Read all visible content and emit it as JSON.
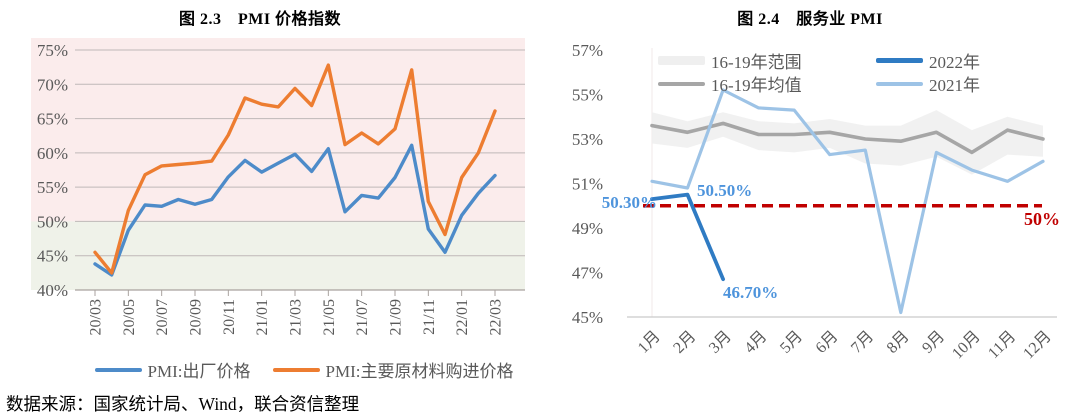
{
  "page": {
    "source_note": "数据来源：国家统计局、Wind，联合资信整理"
  },
  "colors": {
    "axis_text": "#595959",
    "gridline": "#BFB8B8",
    "axis_line": "#A9A29F",
    "baseline": "#C9C9C9",
    "annotation_blue": "#4E94DC",
    "refline_red": "#C00000"
  },
  "chart_data": [
    {
      "type": "line",
      "title": "图 2.3　PMI 价格指数",
      "categories": [
        "20/03",
        "20/04",
        "20/05",
        "20/06",
        "20/07",
        "20/08",
        "20/09",
        "20/10",
        "20/11",
        "20/12",
        "21/01",
        "21/02",
        "21/03",
        "21/04",
        "21/05",
        "21/06",
        "21/07",
        "21/08",
        "21/09",
        "21/10",
        "21/11",
        "21/12",
        "22/01",
        "22/02",
        "22/03"
      ],
      "x_tick_labels": [
        "20/03",
        "20/05",
        "20/07",
        "20/09",
        "20/11",
        "21/01",
        "21/03",
        "21/05",
        "21/07",
        "21/09",
        "21/11",
        "22/01",
        "22/03"
      ],
      "y_ticks": [
        {
          "label": "40%",
          "value": 40
        },
        {
          "label": "45%",
          "value": 45
        },
        {
          "label": "50%",
          "value": 50
        },
        {
          "label": "55%",
          "value": 55
        },
        {
          "label": "60%",
          "value": 60
        },
        {
          "label": "65%",
          "value": 65
        },
        {
          "label": "70%",
          "value": 70
        },
        {
          "label": "75%",
          "value": 75
        }
      ],
      "ylim": [
        40,
        75
      ],
      "grid": true,
      "legend_position": "bottom",
      "plot_bands": [
        {
          "from": 50,
          "to": 75,
          "color": "#FBECEC"
        },
        {
          "from": 40,
          "to": 50,
          "color": "#EFF2E9"
        }
      ],
      "series": [
        {
          "name": "PMI:出厂价格",
          "color": "#4D8BC9",
          "values": [
            43.8,
            42.2,
            48.7,
            52.4,
            52.2,
            53.2,
            52.5,
            53.2,
            56.5,
            58.9,
            57.2,
            58.5,
            59.8,
            57.3,
            60.6,
            51.4,
            53.8,
            53.4,
            56.4,
            61.1,
            48.9,
            45.5,
            50.9,
            54.1,
            56.7
          ]
        },
        {
          "name": "PMI:主要原材料购进价格",
          "color": "#ED7D31",
          "values": [
            45.5,
            42.5,
            51.6,
            56.8,
            58.1,
            58.3,
            58.5,
            58.8,
            62.6,
            68.0,
            67.1,
            66.7,
            69.4,
            66.9,
            72.8,
            61.2,
            62.9,
            61.3,
            63.5,
            72.1,
            52.9,
            48.1,
            56.4,
            60.0,
            66.1
          ]
        }
      ]
    },
    {
      "type": "line",
      "title": "图 2.4　服务业 PMI",
      "categories": [
        "1月",
        "2月",
        "3月",
        "4月",
        "5月",
        "6月",
        "7月",
        "8月",
        "9月",
        "10月",
        "11月",
        "12月"
      ],
      "y_ticks": [
        {
          "label": "45%",
          "value": 45
        },
        {
          "label": "47%",
          "value": 47
        },
        {
          "label": "49%",
          "value": 49
        },
        {
          "label": "51%",
          "value": 51
        },
        {
          "label": "53%",
          "value": 53
        },
        {
          "label": "55%",
          "value": 55
        },
        {
          "label": "57%",
          "value": 57
        }
      ],
      "ylim": [
        45,
        57
      ],
      "grid": false,
      "legend_position": "top",
      "band": {
        "name": "16-19年范围",
        "color": "#EFEFEF",
        "upper": [
          54.2,
          53.8,
          54.2,
          53.8,
          53.7,
          53.9,
          53.6,
          53.6,
          54.3,
          53.4,
          54.0,
          53.6
        ],
        "lower": [
          52.8,
          52.6,
          53.1,
          52.5,
          52.4,
          52.6,
          51.9,
          51.8,
          52.2,
          51.4,
          52.3,
          52.2
        ]
      },
      "series": [
        {
          "name": "16-19年均值",
          "color": "#A6A6A6",
          "values": [
            53.6,
            53.3,
            53.7,
            53.2,
            53.2,
            53.3,
            53.0,
            52.9,
            53.3,
            52.4,
            53.4,
            53.0
          ]
        },
        {
          "name": "2022年",
          "color": "#2F7BC3",
          "values": [
            50.3,
            50.5,
            46.7,
            null,
            null,
            null,
            null,
            null,
            null,
            null,
            null,
            null
          ]
        },
        {
          "name": "2021年",
          "color": "#9DC3E6",
          "values": [
            51.1,
            50.8,
            55.2,
            54.4,
            54.3,
            52.3,
            52.5,
            45.2,
            52.4,
            51.6,
            51.1,
            52.0
          ]
        }
      ],
      "refline": {
        "value": 50,
        "label": "50%",
        "color": "#C00000"
      },
      "annotations": [
        {
          "text": "50.30%",
          "month": "1月",
          "value": 50.3
        },
        {
          "text": "50.50%",
          "month": "2月",
          "value": 50.5
        },
        {
          "text": "46.70%",
          "month": "3月",
          "value": 46.7
        }
      ]
    }
  ]
}
